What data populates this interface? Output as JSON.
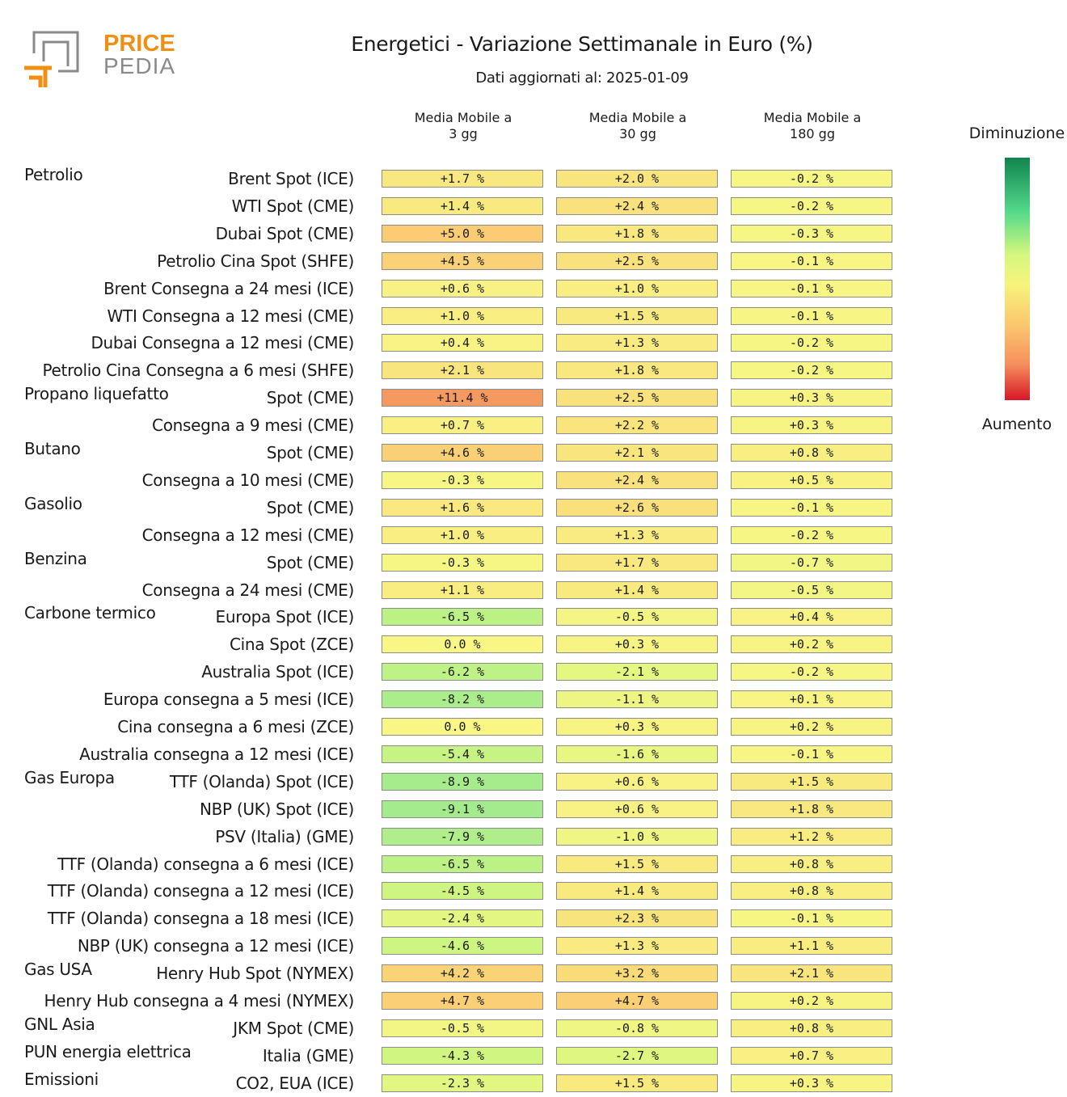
{
  "logo": {
    "word1": "PRICE",
    "word2": "PEDIA",
    "accent": "#ef8f13",
    "gray": "#8a8a8a"
  },
  "header": {
    "title": "Energetici - Variazione Settimanale in Euro (%)",
    "subtitle": "Dati aggiornati al: 2025-01-09"
  },
  "columns": [
    {
      "line1": "Media Mobile a",
      "line2": "3 gg"
    },
    {
      "line1": "Media Mobile a",
      "line2": "30 gg"
    },
    {
      "line1": "Media Mobile a",
      "line2": "180 gg"
    }
  ],
  "legend": {
    "top": "Diminuzione",
    "bottom": "Aumento"
  },
  "chart_data": {
    "type": "heatmap",
    "title": "Energetici - Variazione Settimanale in Euro (%)",
    "subtitle": "Dati aggiornati al: 2025-01-09",
    "unit": "%",
    "columns": [
      "Media Mobile a 3 gg",
      "Media Mobile a 30 gg",
      "Media Mobile a 180 gg"
    ],
    "groups": [
      {
        "name": "Petrolio",
        "rows": [
          {
            "label": "Brent Spot (ICE)",
            "values": [
              1.7,
              2.0,
              -0.2
            ]
          },
          {
            "label": "WTI Spot (CME)",
            "values": [
              1.4,
              2.4,
              -0.2
            ]
          },
          {
            "label": "Dubai Spot (CME)",
            "values": [
              5.0,
              1.8,
              -0.3
            ]
          },
          {
            "label": "Petrolio Cina Spot (SHFE)",
            "values": [
              4.5,
              2.5,
              -0.1
            ]
          },
          {
            "label": "Brent Consegna a 24 mesi (ICE)",
            "values": [
              0.6,
              1.0,
              -0.1
            ]
          },
          {
            "label": "WTI Consegna a 12 mesi (CME)",
            "values": [
              1.0,
              1.5,
              -0.1
            ]
          },
          {
            "label": "Dubai Consegna a 12 mesi (CME)",
            "values": [
              0.4,
              1.3,
              -0.2
            ]
          },
          {
            "label": "Petrolio Cina Consegna a 6 mesi (SHFE)",
            "values": [
              2.1,
              1.8,
              -0.2
            ]
          }
        ]
      },
      {
        "name": "Propano liquefatto",
        "rows": [
          {
            "label": "Spot (CME)",
            "values": [
              11.4,
              2.5,
              0.3
            ]
          },
          {
            "label": "Consegna a 9 mesi (CME)",
            "values": [
              0.7,
              2.2,
              0.3
            ]
          }
        ]
      },
      {
        "name": "Butano",
        "rows": [
          {
            "label": "Spot (CME)",
            "values": [
              4.6,
              2.1,
              0.8
            ]
          },
          {
            "label": "Consegna a 10 mesi (CME)",
            "values": [
              -0.3,
              2.4,
              0.5
            ]
          }
        ]
      },
      {
        "name": "Gasolio",
        "rows": [
          {
            "label": "Spot (CME)",
            "values": [
              1.6,
              2.6,
              -0.1
            ]
          },
          {
            "label": "Consegna a 12 mesi (CME)",
            "values": [
              1.0,
              1.3,
              -0.2
            ]
          }
        ]
      },
      {
        "name": "Benzina",
        "rows": [
          {
            "label": "Spot (CME)",
            "values": [
              -0.3,
              1.7,
              -0.7
            ]
          },
          {
            "label": "Consegna a 24 mesi (CME)",
            "values": [
              1.1,
              1.4,
              -0.5
            ]
          }
        ]
      },
      {
        "name": "Carbone termico",
        "rows": [
          {
            "label": "Europa Spot (ICE)",
            "values": [
              -6.5,
              -0.5,
              0.4
            ]
          },
          {
            "label": "Cina Spot (ZCE)",
            "values": [
              0.0,
              0.3,
              0.2
            ]
          },
          {
            "label": "Australia Spot (ICE)",
            "values": [
              -6.2,
              -2.1,
              -0.2
            ]
          },
          {
            "label": "Europa consegna a 5 mesi (ICE)",
            "values": [
              -8.2,
              -1.1,
              0.1
            ]
          },
          {
            "label": "Cina consegna a 6 mesi (ZCE)",
            "values": [
              0.0,
              0.3,
              0.2
            ]
          },
          {
            "label": "Australia consegna a 12 mesi (ICE)",
            "values": [
              -5.4,
              -1.6,
              -0.1
            ]
          }
        ]
      },
      {
        "name": "Gas Europa",
        "rows": [
          {
            "label": "TTF (Olanda) Spot (ICE)",
            "values": [
              -8.9,
              0.6,
              1.5
            ]
          },
          {
            "label": "NBP (UK) Spot (ICE)",
            "values": [
              -9.1,
              0.6,
              1.8
            ]
          },
          {
            "label": "PSV (Italia) (GME)",
            "values": [
              -7.9,
              -1.0,
              1.2
            ]
          },
          {
            "label": "TTF (Olanda) consegna a 6 mesi (ICE)",
            "values": [
              -6.5,
              1.5,
              0.8
            ]
          },
          {
            "label": "TTF (Olanda) consegna a 12 mesi (ICE)",
            "values": [
              -4.5,
              1.4,
              0.8
            ]
          },
          {
            "label": "TTF (Olanda) consegna a 18 mesi (ICE)",
            "values": [
              -2.4,
              2.3,
              -0.1
            ]
          },
          {
            "label": "NBP (UK) consegna a 12 mesi (ICE)",
            "values": [
              -4.6,
              1.3,
              1.1
            ]
          }
        ]
      },
      {
        "name": "Gas USA",
        "rows": [
          {
            "label": "Henry Hub Spot (NYMEX)",
            "values": [
              4.2,
              3.2,
              2.1
            ]
          },
          {
            "label": "Henry Hub consegna a 4 mesi (NYMEX)",
            "values": [
              4.7,
              4.7,
              0.2
            ]
          }
        ]
      },
      {
        "name": "GNL Asia",
        "rows": [
          {
            "label": "JKM Spot (CME)",
            "values": [
              -0.5,
              -0.8,
              0.8
            ]
          }
        ]
      },
      {
        "name": "PUN energia elettrica",
        "rows": [
          {
            "label": "Italia (GME)",
            "values": [
              -4.3,
              -2.7,
              0.7
            ]
          }
        ]
      },
      {
        "name": "Emissioni",
        "rows": [
          {
            "label": "CO2, EUA (ICE)",
            "values": [
              -2.3,
              1.5,
              0.3
            ]
          }
        ]
      }
    ]
  }
}
